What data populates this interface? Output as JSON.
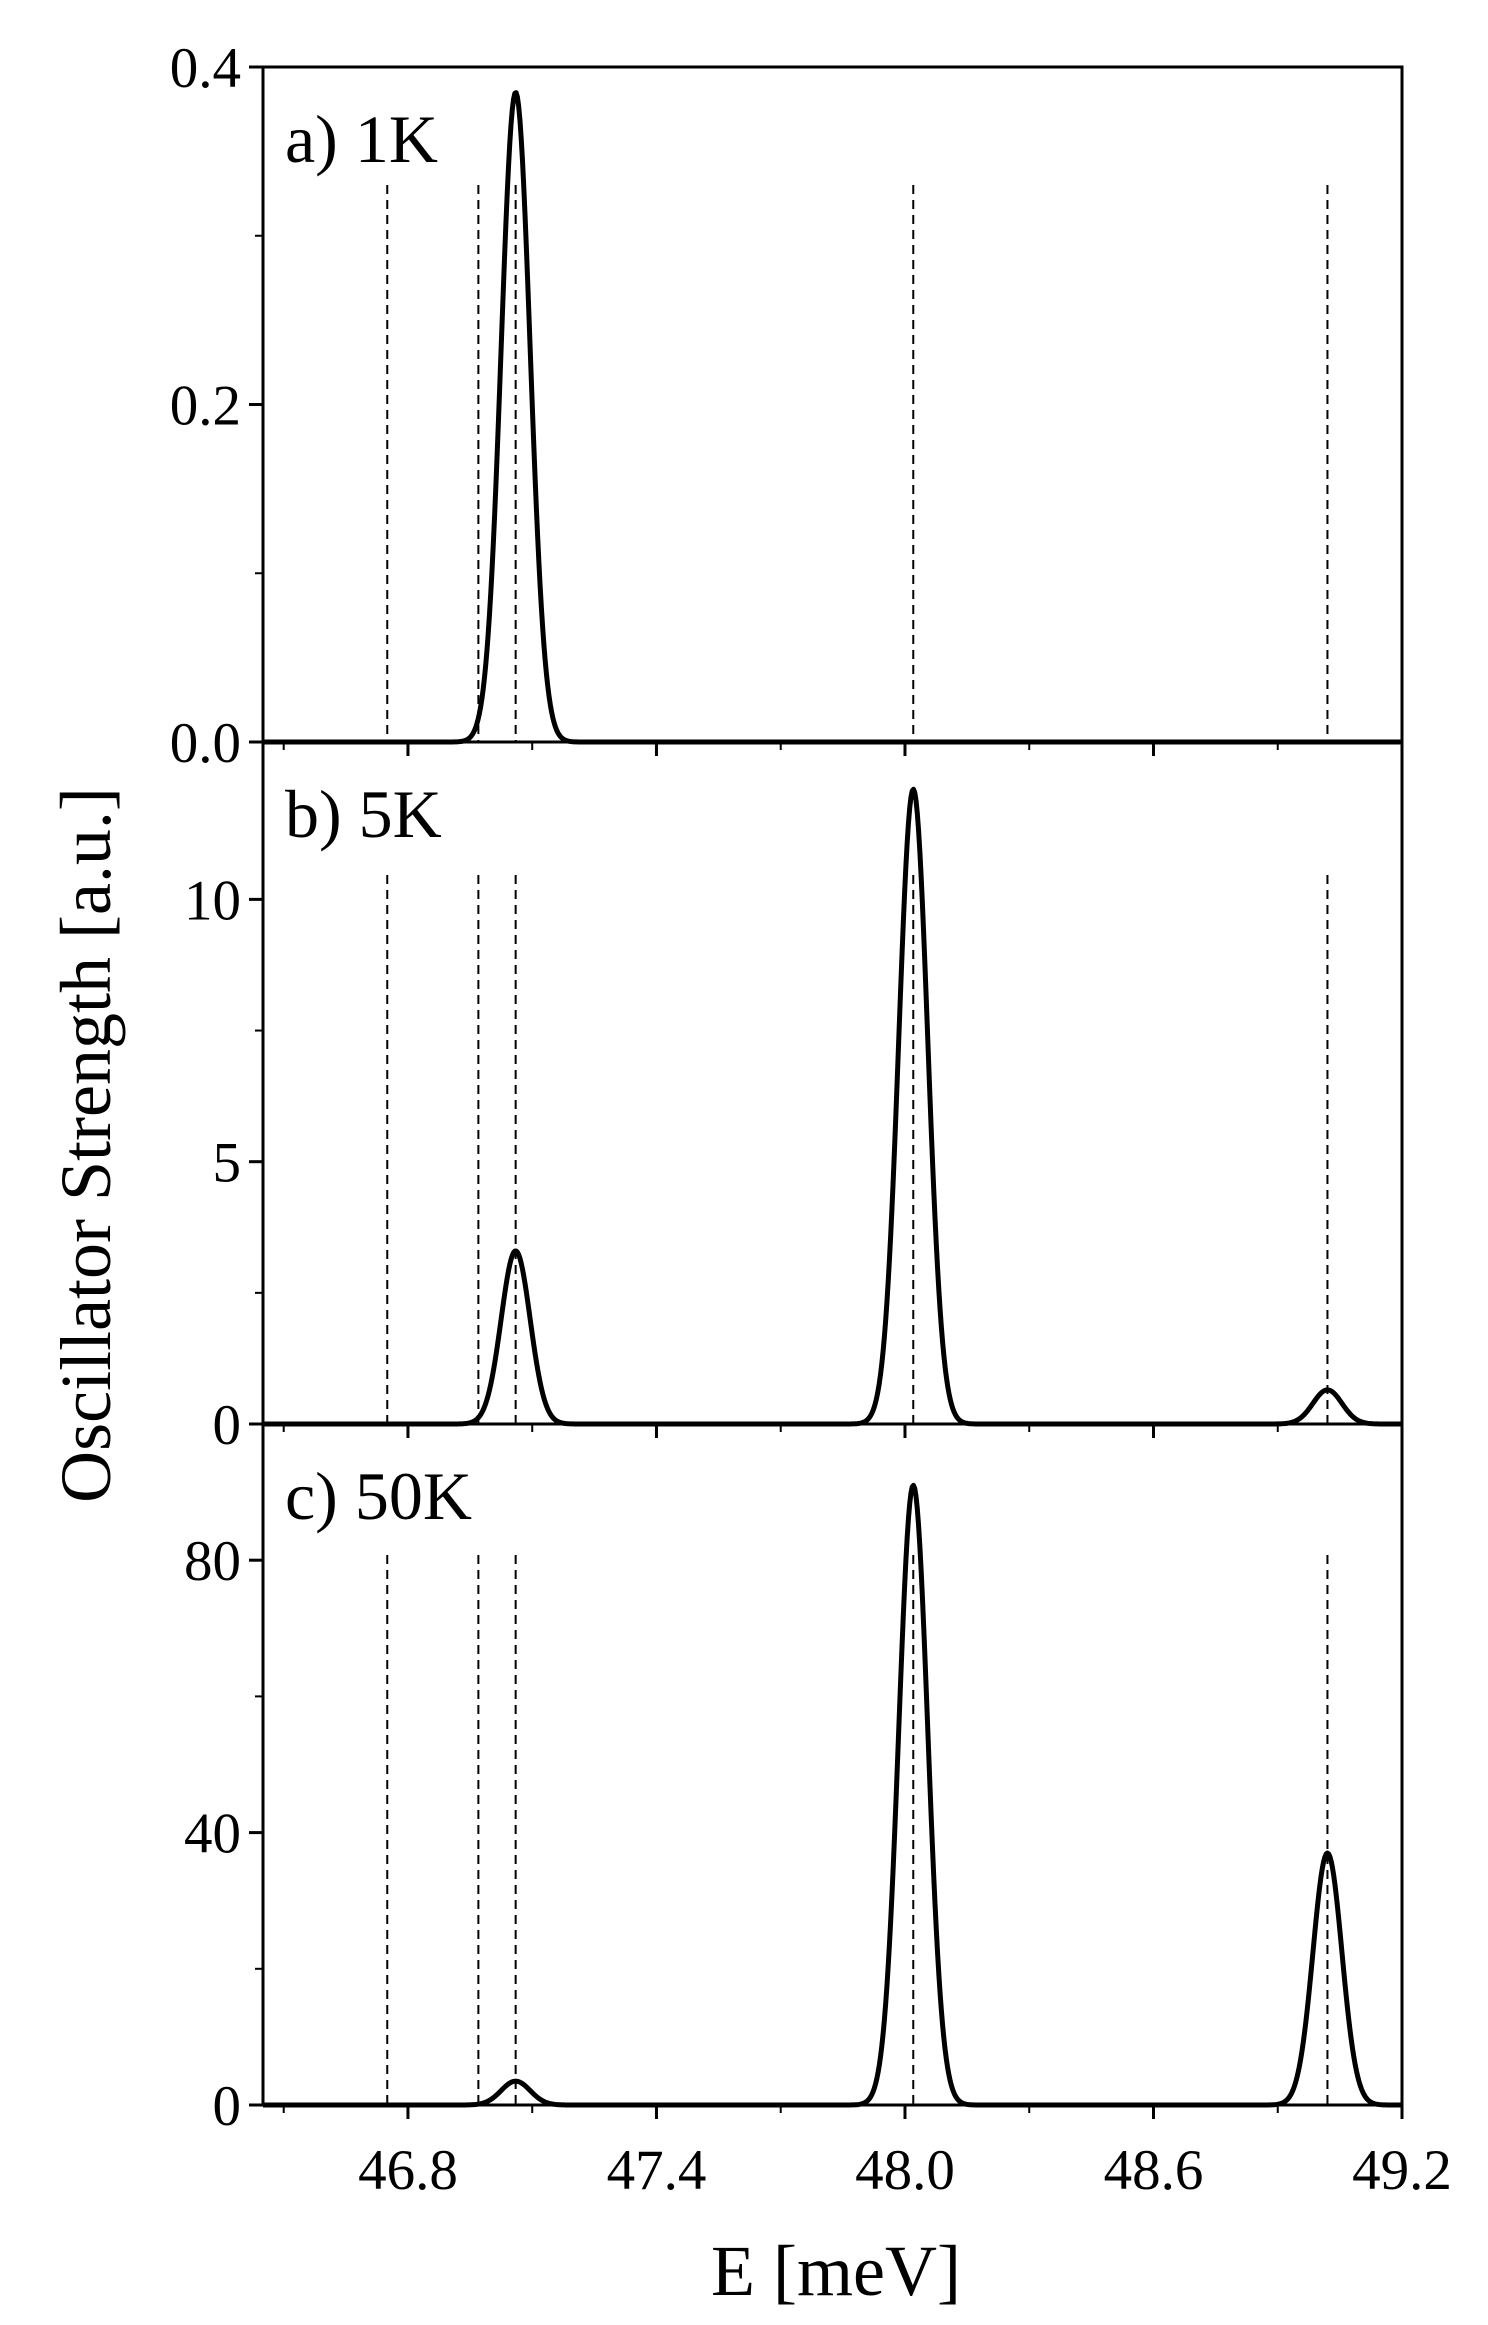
{
  "figure": {
    "ylabel": "Oscillator Strength [a.u.]",
    "xlabel": "E [meV]",
    "colors": {
      "curve": "#000000",
      "axes": "#000000",
      "reference_lines": "#000000"
    }
  },
  "chart_data": [
    {
      "type": "line",
      "panel_label": "a) 1K",
      "xlim": [
        46.45,
        49.2
      ],
      "ylim": [
        0,
        0.4
      ],
      "x_ticks": [
        "46.8",
        "47.4",
        "48.0",
        "48.6",
        "49.2"
      ],
      "y_ticks": [
        "0.0",
        "0.2",
        "0.4"
      ],
      "grid": false,
      "reference_lines_x": [
        46.75,
        46.97,
        47.06,
        48.02,
        49.02
      ],
      "peaks": [
        {
          "x": 47.06,
          "height": 0.385,
          "width": 0.035
        }
      ],
      "peak_labels": [
        "",
        "",
        ""
      ]
    },
    {
      "type": "line",
      "panel_label": "b) 5K",
      "xlim": [
        46.45,
        49.2
      ],
      "ylim": [
        0,
        13
      ],
      "x_ticks": [
        "46.8",
        "47.4",
        "48.0",
        "48.6",
        "49.2"
      ],
      "y_ticks": [
        "0",
        "5",
        "10"
      ],
      "grid": false,
      "reference_lines_x": [
        46.75,
        46.97,
        47.06,
        48.02,
        49.02
      ],
      "peaks": [
        {
          "x": 47.06,
          "height": 3.3,
          "width": 0.035
        },
        {
          "x": 48.02,
          "height": 12.1,
          "width": 0.035
        },
        {
          "x": 49.02,
          "height": 0.65,
          "width": 0.035
        }
      ],
      "peak_labels": [
        "",
        "",
        ""
      ]
    },
    {
      "type": "line",
      "panel_label": "c) 50K",
      "xlim": [
        46.45,
        49.2
      ],
      "ylim": [
        0,
        100
      ],
      "x_ticks": [
        "46.8",
        "47.4",
        "48.0",
        "48.6",
        "49.2"
      ],
      "y_ticks": [
        "0",
        "40",
        "80"
      ],
      "grid": false,
      "reference_lines_x": [
        46.75,
        46.97,
        47.06,
        48.02,
        49.02
      ],
      "peaks": [
        {
          "x": 47.06,
          "height": 3.5,
          "width": 0.035
        },
        {
          "x": 48.02,
          "height": 91,
          "width": 0.035
        },
        {
          "x": 49.02,
          "height": 37,
          "width": 0.035
        }
      ],
      "peak_labels": [
        "",
        "",
        ""
      ]
    }
  ]
}
